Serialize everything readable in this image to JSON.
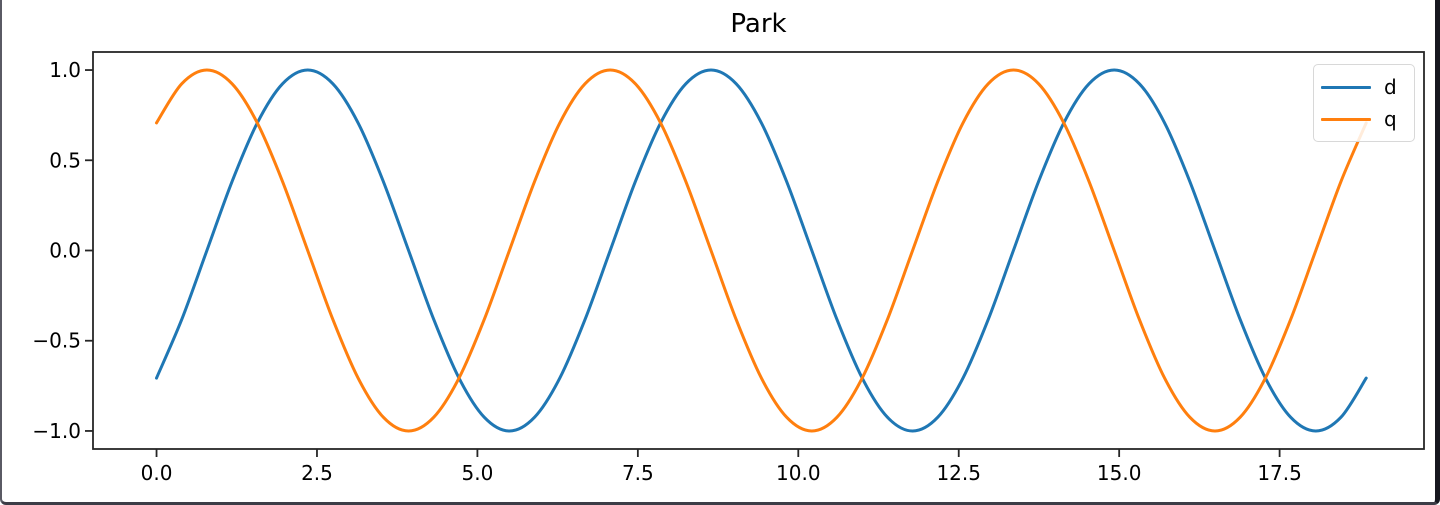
{
  "figure": {
    "background": "#ffffff",
    "border_left_color": "#5a5a64",
    "border_right_color": "#17171f",
    "border_bottom_color": "#3c3c46",
    "text_color": "#000000",
    "spine_color": "#262626"
  },
  "chart_data": {
    "type": "line",
    "title": "Park",
    "xlabel": "",
    "ylabel": "",
    "grid": false,
    "legend_position": "upper right",
    "xlim": [
      -0.99,
      19.75
    ],
    "ylim": [
      -1.1,
      1.1
    ],
    "xticks": [
      0,
      2.5,
      5,
      7.5,
      10,
      12.5,
      15,
      17.5
    ],
    "xtick_labels": [
      "0.0",
      "2.5",
      "5.0",
      "7.5",
      "10.0",
      "12.5",
      "15.0",
      "17.5"
    ],
    "yticks": [
      1,
      0.5,
      0,
      -0.5,
      -1
    ],
    "ytick_labels": [
      "1.0",
      "0.5",
      "0.0",
      "−0.5",
      "−1.0"
    ],
    "x": [
      0.0,
      0.3927,
      0.7854,
      1.1781,
      1.5708,
      1.9635,
      2.3562,
      2.7489,
      3.1416,
      3.5343,
      3.927,
      4.3197,
      4.7124,
      5.1051,
      5.4978,
      5.8905,
      6.2832,
      6.6759,
      7.0686,
      7.4613,
      7.854,
      8.2467,
      8.6394,
      9.0321,
      9.4248,
      9.8175,
      10.2102,
      10.6029,
      10.9956,
      11.3883,
      11.781,
      12.1737,
      12.5664,
      12.9591,
      13.3518,
      13.7445,
      14.1372,
      14.5299,
      14.9226,
      15.3153,
      15.708,
      16.1007,
      16.4934,
      16.8861,
      17.2788,
      17.6715,
      18.0642,
      18.4569,
      18.8496
    ],
    "series": [
      {
        "name": "d",
        "color": "#1f77b4",
        "values": [
          -0.7071,
          -0.3827,
          0,
          0.3827,
          0.7071,
          0.9239,
          1,
          0.9239,
          0.7071,
          0.3827,
          0,
          -0.3827,
          -0.7071,
          -0.9239,
          -1,
          -0.9239,
          -0.7071,
          -0.3827,
          0,
          0.3827,
          0.7071,
          0.9239,
          1,
          0.9239,
          0.7071,
          0.3827,
          0,
          -0.3827,
          -0.7071,
          -0.9239,
          -1,
          -0.9239,
          -0.7071,
          -0.3827,
          0,
          0.3827,
          0.7071,
          0.9239,
          1,
          0.9239,
          0.7071,
          0.3827,
          0,
          -0.3827,
          -0.7071,
          -0.9239,
          -1,
          -0.9239,
          -0.7071
        ]
      },
      {
        "name": "q",
        "color": "#ff7f0e",
        "values": [
          0.7071,
          0.9239,
          1,
          0.9239,
          0.7071,
          0.3827,
          0,
          -0.3827,
          -0.7071,
          -0.9239,
          -1,
          -0.9239,
          -0.7071,
          -0.3827,
          0,
          0.3827,
          0.7071,
          0.9239,
          1,
          0.9239,
          0.7071,
          0.3827,
          0,
          -0.3827,
          -0.7071,
          -0.9239,
          -1,
          -0.9239,
          -0.7071,
          -0.3827,
          0,
          0.3827,
          0.7071,
          0.9239,
          1,
          0.9239,
          0.7071,
          0.3827,
          0,
          -0.3827,
          -0.7071,
          -0.9239,
          -1,
          -0.9239,
          -0.7071,
          -0.3827,
          0,
          0.3827,
          0.7071
        ]
      }
    ]
  }
}
